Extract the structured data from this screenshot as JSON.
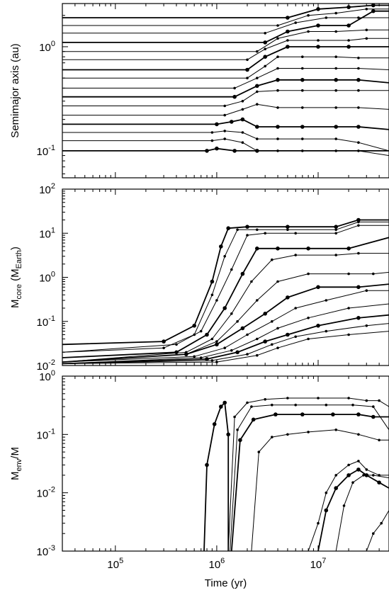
{
  "chart_data": [
    {
      "type": "line",
      "panel": "top",
      "ylabel": "Semimajor axis (au)",
      "xscale": "log",
      "yscale": "log",
      "xlim": [
        30000,
        50000000
      ],
      "ylim": [
        0.055,
        2.6
      ],
      "yticks": [
        {
          "value": 1,
          "label": "10^0"
        },
        {
          "value": 0.1,
          "label": "10^-1"
        }
      ],
      "series": [
        {
          "x": [
            30000,
            800000,
            1000000,
            1500000,
            2500000,
            50000000
          ],
          "y": [
            0.1,
            0.1,
            0.105,
            0.1,
            0.1,
            0.1
          ]
        },
        {
          "x": [
            30000,
            900000,
            1200000,
            1800000,
            2500000,
            4000000,
            7000000,
            15000000,
            25000000,
            50000000
          ],
          "y": [
            0.125,
            0.125,
            0.13,
            0.12,
            0.1,
            0.1,
            0.1,
            0.1,
            0.1,
            0.09
          ]
        },
        {
          "x": [
            30000,
            900000,
            1200000,
            1800000,
            2500000,
            4000000,
            7000000,
            15000000,
            25000000,
            50000000
          ],
          "y": [
            0.15,
            0.15,
            0.155,
            0.15,
            0.13,
            0.13,
            0.13,
            0.13,
            0.12,
            0.1
          ]
        },
        {
          "x": [
            30000,
            1000000,
            1400000,
            1800000,
            2500000,
            4000000,
            7000000,
            15000000,
            25000000,
            50000000
          ],
          "y": [
            0.18,
            0.18,
            0.19,
            0.2,
            0.17,
            0.17,
            0.17,
            0.17,
            0.17,
            0.16
          ]
        },
        {
          "x": [
            30000,
            1200000,
            1800000,
            2500000,
            4000000,
            7000000,
            15000000,
            25000000,
            50000000
          ],
          "y": [
            0.22,
            0.22,
            0.25,
            0.28,
            0.26,
            0.26,
            0.26,
            0.26,
            0.25
          ]
        },
        {
          "x": [
            30000,
            1200000,
            1800000,
            2500000,
            4000000,
            7000000,
            15000000,
            25000000,
            50000000
          ],
          "y": [
            0.27,
            0.27,
            0.3,
            0.37,
            0.38,
            0.38,
            0.38,
            0.38,
            0.38
          ]
        },
        {
          "x": [
            30000,
            1500000,
            2500000,
            4000000,
            7000000,
            15000000,
            25000000,
            50000000
          ],
          "y": [
            0.33,
            0.33,
            0.42,
            0.48,
            0.48,
            0.48,
            0.48,
            0.45
          ]
        },
        {
          "x": [
            30000,
            1500000,
            2500000,
            4000000,
            7000000,
            15000000,
            25000000,
            50000000
          ],
          "y": [
            0.4,
            0.4,
            0.5,
            0.62,
            0.62,
            0.62,
            0.62,
            0.6
          ]
        },
        {
          "x": [
            30000,
            2000000,
            3000000,
            4000000,
            7000000,
            15000000,
            25000000,
            50000000
          ],
          "y": [
            0.5,
            0.5,
            0.65,
            0.8,
            0.8,
            0.8,
            0.78,
            0.78
          ]
        },
        {
          "x": [
            30000,
            2000000,
            3000000,
            5000000,
            10000000,
            20000000,
            50000000
          ],
          "y": [
            0.6,
            0.6,
            0.8,
            1.0,
            1.0,
            1.0,
            1.0
          ]
        },
        {
          "x": [
            30000,
            2000000,
            3000000,
            5000000,
            10000000,
            20000000,
            30000000,
            50000000
          ],
          "y": [
            0.75,
            0.75,
            0.95,
            1.15,
            1.15,
            1.15,
            1.2,
            1.2
          ]
        },
        {
          "x": [
            30000,
            2500000,
            4000000,
            8000000,
            15000000,
            30000000,
            50000000
          ],
          "y": [
            0.9,
            0.9,
            1.2,
            1.4,
            1.4,
            1.45,
            1.45
          ]
        },
        {
          "x": [
            30000,
            3000000,
            5000000,
            10000000,
            20000000,
            35000000,
            50000000
          ],
          "y": [
            1.1,
            1.1,
            1.4,
            1.6,
            1.6,
            2.2,
            2.2
          ]
        },
        {
          "x": [
            30000,
            3000000,
            6000000,
            12000000,
            25000000,
            50000000
          ],
          "y": [
            1.35,
            1.35,
            1.7,
            1.9,
            1.9,
            1.9
          ]
        },
        {
          "x": [
            30000,
            4000000,
            8000000,
            15000000,
            30000000,
            50000000
          ],
          "y": [
            1.6,
            1.6,
            2.0,
            2.1,
            2.3,
            2.3
          ]
        },
        {
          "x": [
            30000,
            5000000,
            10000000,
            20000000,
            35000000,
            50000000
          ],
          "y": [
            1.9,
            1.9,
            2.3,
            2.4,
            2.5,
            2.5
          ]
        }
      ]
    },
    {
      "type": "line",
      "panel": "middle",
      "ylabel": "M_core (M_Earth)",
      "ylabel_main": "M",
      "ylabel_sub": "core",
      "ylabel_mid": " (M",
      "ylabel_sub2": "Earth",
      "ylabel_end": ")",
      "xscale": "log",
      "yscale": "log",
      "xlim": [
        30000,
        50000000
      ],
      "ylim": [
        0.01,
        100
      ],
      "yticks": [
        {
          "value": 100,
          "label": "10^2"
        },
        {
          "value": 10,
          "label": "10^1"
        },
        {
          "value": 1,
          "label": "10^0"
        },
        {
          "value": 0.1,
          "label": "10^-1"
        },
        {
          "value": 0.01,
          "label": "10^-2"
        }
      ],
      "series": [
        {
          "x": [
            30000,
            300000,
            600000,
            900000,
            1100000,
            1300000,
            2000000,
            5000000,
            15000000,
            25000000,
            50000000
          ],
          "y": [
            0.03,
            0.035,
            0.08,
            0.8,
            5,
            13,
            14,
            14,
            14,
            20,
            20
          ]
        },
        {
          "x": [
            30000,
            300000,
            600000,
            900000,
            1200000,
            1600000,
            2500000,
            5000000,
            15000000,
            25000000,
            50000000
          ],
          "y": [
            0.02,
            0.025,
            0.05,
            0.4,
            3,
            12,
            12,
            12,
            12,
            18,
            18
          ]
        },
        {
          "x": [
            30000,
            400000,
            700000,
            1000000,
            1400000,
            2000000,
            3000000,
            6000000,
            15000000,
            25000000,
            50000000
          ],
          "y": [
            0.02,
            0.03,
            0.06,
            0.3,
            1.5,
            9,
            10,
            10,
            10,
            15,
            15
          ]
        },
        {
          "x": [
            30000,
            400000,
            800000,
            1200000,
            1800000,
            2500000,
            4000000,
            8000000,
            20000000,
            50000000
          ],
          "y": [
            0.015,
            0.02,
            0.05,
            0.2,
            1.2,
            4.5,
            4.5,
            4.5,
            4.5,
            8
          ]
        },
        {
          "x": [
            30000,
            500000,
            900000,
            1400000,
            2200000,
            3500000,
            6000000,
            15000000,
            25000000,
            50000000
          ],
          "y": [
            0.012,
            0.02,
            0.04,
            0.15,
            0.8,
            2.5,
            3.2,
            3.2,
            3.5,
            3.5
          ]
        },
        {
          "x": [
            30000,
            500000,
            1000000,
            1600000,
            2500000,
            4000000,
            8000000,
            20000000,
            35000000,
            50000000
          ],
          "y": [
            0.012,
            0.018,
            0.035,
            0.1,
            0.3,
            0.8,
            1.2,
            1.2,
            1.2,
            1.3
          ]
        },
        {
          "x": [
            30000,
            500000,
            1000000,
            1800000,
            3000000,
            5000000,
            10000000,
            25000000,
            50000000
          ],
          "y": [
            0.012,
            0.018,
            0.03,
            0.07,
            0.15,
            0.35,
            0.6,
            0.6,
            0.7
          ]
        },
        {
          "x": [
            30000,
            600000,
            1200000,
            2000000,
            3500000,
            6000000,
            12000000,
            30000000,
            50000000
          ],
          "y": [
            0.012,
            0.016,
            0.025,
            0.05,
            0.1,
            0.2,
            0.3,
            0.5,
            0.5
          ]
        },
        {
          "x": [
            30000,
            700000,
            1400000,
            2500000,
            4000000,
            8000000,
            20000000,
            50000000
          ],
          "y": [
            0.011,
            0.015,
            0.022,
            0.04,
            0.07,
            0.12,
            0.2,
            0.25
          ]
        },
        {
          "x": [
            30000,
            800000,
            1600000,
            3000000,
            5000000,
            10000000,
            25000000,
            50000000
          ],
          "y": [
            0.011,
            0.014,
            0.02,
            0.035,
            0.05,
            0.08,
            0.12,
            0.14
          ]
        },
        {
          "x": [
            30000,
            900000,
            2000000,
            3500000,
            6000000,
            12000000,
            30000000,
            50000000
          ],
          "y": [
            0.011,
            0.013,
            0.018,
            0.03,
            0.045,
            0.06,
            0.08,
            0.09
          ]
        },
        {
          "x": [
            30000,
            1000000,
            2500000,
            4000000,
            8000000,
            20000000,
            50000000
          ],
          "y": [
            0.011,
            0.012,
            0.017,
            0.025,
            0.04,
            0.05,
            0.06
          ]
        }
      ]
    },
    {
      "type": "line",
      "panel": "bottom",
      "ylabel": "M_env/M",
      "ylabel_main": "M",
      "ylabel_sub": "env",
      "ylabel_end": "/M",
      "xlabel": "Time (yr)",
      "xscale": "log",
      "yscale": "log",
      "xlim": [
        30000,
        50000000
      ],
      "ylim": [
        0.001,
        1
      ],
      "yticks": [
        {
          "value": 1,
          "label": "10^0"
        },
        {
          "value": 0.1,
          "label": "10^-1"
        },
        {
          "value": 0.01,
          "label": "10^-2"
        },
        {
          "value": 0.001,
          "label": "10^-3"
        }
      ],
      "xticks": [
        {
          "value": 100000,
          "label": "10^5"
        },
        {
          "value": 1000000,
          "label": "10^6"
        },
        {
          "value": 10000000,
          "label": "10^7"
        }
      ],
      "series": [
        {
          "x": [
            750000,
            800000,
            950000,
            1100000,
            1200000,
            1300000,
            1300000
          ],
          "y": [
            0.001,
            0.03,
            0.15,
            0.3,
            0.35,
            0.1,
            0.001
          ]
        },
        {
          "x": [
            1300000,
            1500000,
            2000000,
            3000000,
            5000000,
            10000000,
            20000000,
            30000000,
            40000000,
            50000000
          ],
          "y": [
            0.001,
            0.2,
            0.35,
            0.4,
            0.42,
            0.42,
            0.42,
            0.38,
            0.38,
            0.3
          ]
        },
        {
          "x": [
            1350000,
            1600000,
            2200000,
            3500000,
            6000000,
            12000000,
            22000000,
            35000000,
            50000000
          ],
          "y": [
            0.001,
            0.12,
            0.3,
            0.32,
            0.32,
            0.32,
            0.32,
            0.3,
            0.12
          ]
        },
        {
          "x": [
            1400000,
            1700000,
            2300000,
            3800000,
            7000000,
            14000000,
            25000000,
            35000000,
            50000000
          ],
          "y": [
            0.001,
            0.08,
            0.18,
            0.22,
            0.22,
            0.22,
            0.22,
            0.2,
            0.2
          ]
        },
        {
          "x": [
            2200000,
            2600000,
            3500000,
            5000000,
            8000000,
            15000000,
            25000000,
            40000000,
            50000000
          ],
          "y": [
            0.001,
            0.05,
            0.09,
            0.1,
            0.11,
            0.12,
            0.1,
            0.08,
            0.08
          ]
        },
        {
          "x": [
            8000000,
            10000000,
            12000000,
            15000000,
            20000000,
            25000000,
            30000000,
            40000000,
            50000000
          ],
          "y": [
            0.001,
            0.003,
            0.01,
            0.02,
            0.03,
            0.035,
            0.025,
            0.02,
            0.02
          ]
        },
        {
          "x": [
            10000000,
            12000000,
            15000000,
            20000000,
            25000000,
            30000000,
            40000000,
            50000000
          ],
          "y": [
            0.001,
            0.005,
            0.012,
            0.02,
            0.025,
            0.02,
            0.015,
            0.012
          ]
        },
        {
          "x": [
            15000000,
            18000000,
            22000000,
            28000000,
            35000000,
            50000000
          ],
          "y": [
            0.001,
            0.006,
            0.015,
            0.02,
            0.02,
            0.018
          ]
        },
        {
          "x": [
            30000000,
            35000000,
            42000000,
            50000000
          ],
          "y": [
            0.001,
            0.002,
            0.003,
            0.005
          ]
        }
      ]
    }
  ]
}
